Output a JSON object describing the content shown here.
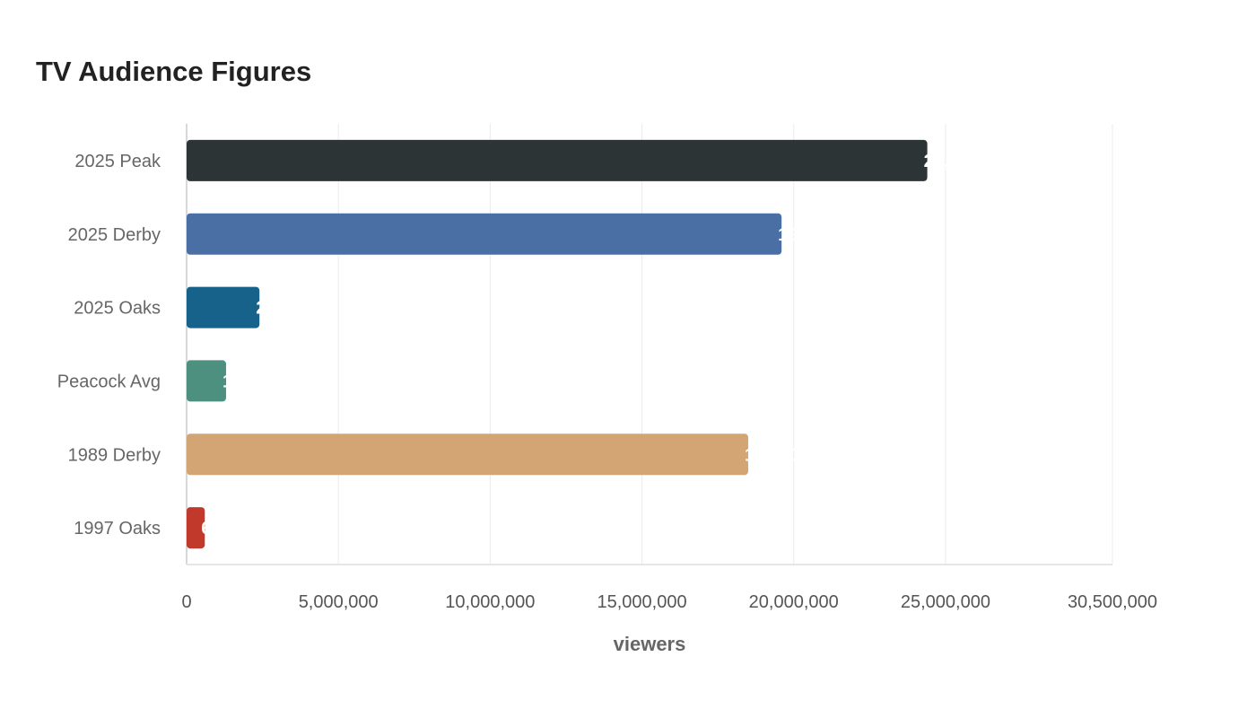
{
  "chart_data": {
    "type": "bar",
    "orientation": "horizontal",
    "title": "TV Audience Figures",
    "xlabel": "viewers",
    "ylabel": "",
    "categories": [
      "2025 Peak",
      "2025 Derby",
      "2025 Oaks",
      "Peacock Avg",
      "1989 Derby",
      "1997 Oaks"
    ],
    "values": [
      24400000,
      19600000,
      2400000,
      1300000,
      18500000,
      600000
    ],
    "value_labels": [
      "24,400,000",
      "19,600,000",
      "2,400,000",
      "1,300,000",
      "18,500,000",
      "600,000"
    ],
    "colors": [
      "#2d3436",
      "#4a6fa5",
      "#17628a",
      "#4e9080",
      "#d4a574",
      "#c0392b"
    ],
    "xlim": [
      0,
      30500000
    ],
    "xticks": [
      0,
      5000000,
      10000000,
      15000000,
      20000000,
      25000000,
      30500000
    ],
    "xtick_labels": [
      "0",
      "5,000,000",
      "10,000,000",
      "15,000,000",
      "20,000,000",
      "25,000,000",
      "30,500,000"
    ],
    "grid": true,
    "legend": "none"
  }
}
